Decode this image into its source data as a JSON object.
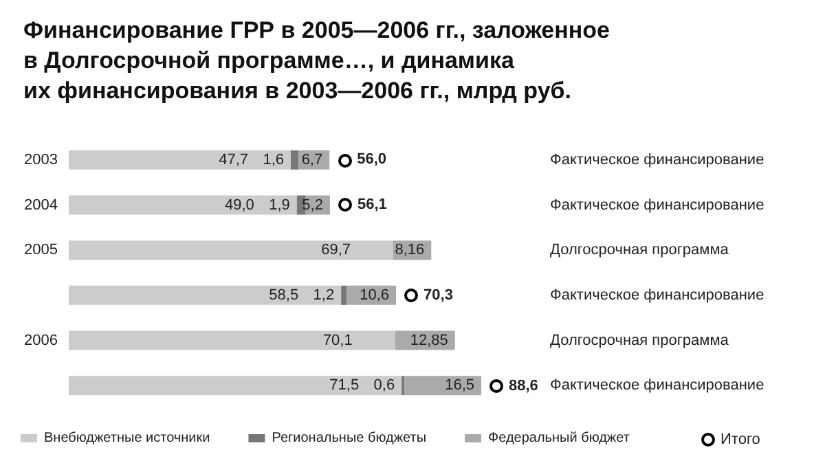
{
  "chart_data": {
    "type": "bar",
    "orientation": "horizontal",
    "stacked": true,
    "title": "Финансирование ГРР в 2005—2006 гг., заложенное\nв Долгосрочной программе…, и динамика\nих финансирования в 2003—2006 гг., млрд руб.",
    "categories": [
      "2003",
      "2004",
      "2005",
      null,
      "2006",
      null
    ],
    "series": [
      {
        "name": "Внебюджетные источники",
        "color": "#cccccc",
        "values": [
          47.7,
          49.0,
          69.7,
          58.5,
          70.1,
          71.5
        ],
        "value_labels": [
          "47,7",
          "49,0",
          "69,7",
          "58,5",
          "70,1",
          "71,5"
        ]
      },
      {
        "name": "Региональные бюджеты",
        "color": "#777777",
        "values": [
          1.6,
          1.9,
          null,
          1.2,
          null,
          0.6
        ],
        "value_labels": [
          "1,6",
          "1,9",
          null,
          "1,2",
          null,
          "0,6"
        ]
      },
      {
        "name": "Федеральный бюджет",
        "color": "#aaaaaa",
        "values": [
          6.7,
          5.2,
          8.16,
          10.6,
          12.85,
          16.5
        ],
        "value_labels": [
          "6,7",
          "5,2",
          "8,16",
          "10,6",
          "12,85",
          "16,5"
        ]
      }
    ],
    "totals": [
      "56,0",
      "56,1",
      null,
      "70,3",
      null,
      "88,6"
    ],
    "annotations": [
      "Фактическое финансирование",
      "Фактическое финансирование",
      "Долгосрочная программа",
      "Фактическое финансирование",
      "Долгосрочная программа",
      "Фактическое финансирование",
      "Итого"
    ],
    "legend": "bottom"
  }
}
